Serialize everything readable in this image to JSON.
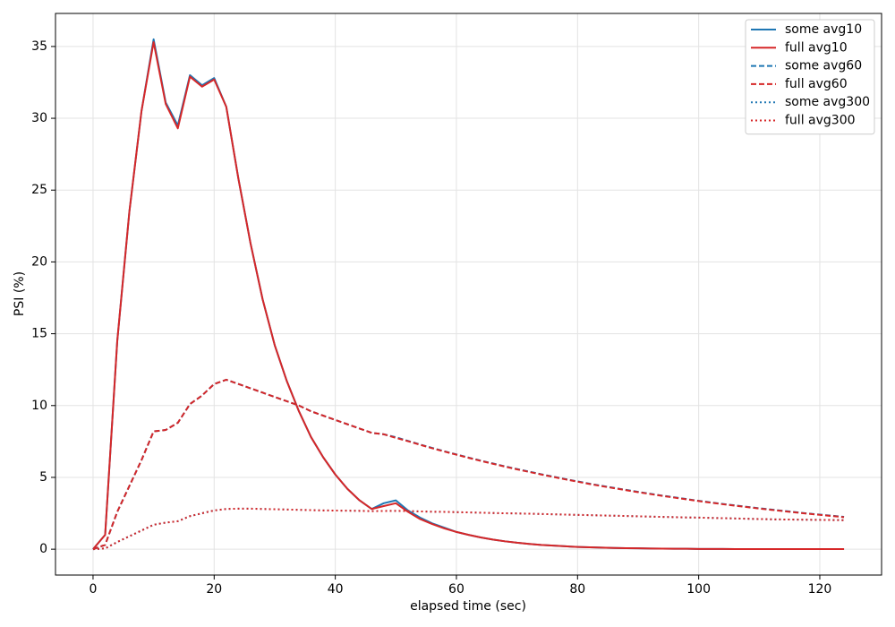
{
  "chart_data": {
    "type": "line",
    "x_label": "elapsed time (sec)",
    "y_label": "PSI (%)",
    "x": [
      0,
      2,
      4,
      6,
      8,
      10,
      12,
      14,
      16,
      18,
      20,
      22,
      24,
      26,
      28,
      30,
      32,
      34,
      36,
      38,
      40,
      42,
      44,
      46,
      48,
      50,
      52,
      54,
      56,
      58,
      60,
      62,
      64,
      66,
      68,
      70,
      72,
      74,
      76,
      78,
      80,
      82,
      84,
      86,
      88,
      90,
      92,
      94,
      96,
      98,
      100,
      102,
      104,
      106,
      108,
      110,
      112,
      114,
      116,
      118,
      120,
      122,
      124
    ],
    "series": [
      {
        "name": "some avg10",
        "color": "#1f77b4",
        "dash": "solid",
        "values": [
          0,
          1.0,
          14.5,
          23.5,
          30.5,
          35.5,
          31.1,
          29.5,
          33.0,
          32.3,
          32.8,
          30.8,
          25.8,
          21.3,
          17.4,
          14.2,
          11.7,
          9.6,
          7.8,
          6.4,
          5.2,
          4.2,
          3.4,
          2.8,
          3.2,
          3.4,
          2.7,
          2.2,
          1.8,
          1.5,
          1.2,
          1.0,
          0.82,
          0.67,
          0.55,
          0.45,
          0.37,
          0.3,
          0.25,
          0.2,
          0.16,
          0.13,
          0.11,
          0.09,
          0.07,
          0.06,
          0.05,
          0.04,
          0.03,
          0.03,
          0.02,
          0.02,
          0.02,
          0.01,
          0.01,
          0.01,
          0.01,
          0.01,
          0.01,
          0.01,
          0.01,
          0.01,
          0.01
        ]
      },
      {
        "name": "full avg10",
        "color": "#d62728",
        "dash": "solid",
        "values": [
          0,
          1.0,
          14.5,
          23.5,
          30.5,
          35.3,
          31.0,
          29.3,
          32.9,
          32.2,
          32.7,
          30.8,
          25.8,
          21.3,
          17.4,
          14.2,
          11.7,
          9.6,
          7.8,
          6.4,
          5.2,
          4.2,
          3.4,
          2.8,
          3.0,
          3.2,
          2.6,
          2.1,
          1.75,
          1.45,
          1.2,
          1.0,
          0.82,
          0.67,
          0.55,
          0.45,
          0.37,
          0.3,
          0.25,
          0.2,
          0.16,
          0.13,
          0.11,
          0.09,
          0.07,
          0.06,
          0.05,
          0.04,
          0.03,
          0.03,
          0.02,
          0.02,
          0.02,
          0.01,
          0.01,
          0.01,
          0.01,
          0.01,
          0.01,
          0.01,
          0.01,
          0.01,
          0.01
        ]
      },
      {
        "name": "some avg60",
        "color": "#1f77b4",
        "dash": "dashed",
        "values": [
          0,
          0.3,
          2.6,
          4.4,
          6.2,
          8.2,
          8.3,
          8.8,
          10.1,
          10.7,
          11.5,
          11.8,
          11.5,
          11.2,
          10.9,
          10.6,
          10.3,
          10.0,
          9.6,
          9.3,
          9.0,
          8.7,
          8.4,
          8.1,
          8.0,
          7.8,
          7.54,
          7.29,
          7.05,
          6.82,
          6.6,
          6.38,
          6.17,
          5.97,
          5.77,
          5.58,
          5.4,
          5.22,
          5.05,
          4.88,
          4.72,
          4.56,
          4.41,
          4.27,
          4.13,
          3.99,
          3.86,
          3.73,
          3.61,
          3.49,
          3.37,
          3.26,
          3.15,
          3.05,
          2.95,
          2.85,
          2.76,
          2.67,
          2.58,
          2.49,
          2.41,
          2.33,
          2.25
        ]
      },
      {
        "name": "full avg60",
        "color": "#d62728",
        "dash": "dashed",
        "values": [
          0,
          0.3,
          2.6,
          4.4,
          6.2,
          8.2,
          8.3,
          8.8,
          10.1,
          10.7,
          11.5,
          11.8,
          11.5,
          11.2,
          10.9,
          10.6,
          10.3,
          10.0,
          9.6,
          9.3,
          9.0,
          8.7,
          8.4,
          8.1,
          8.0,
          7.75,
          7.52,
          7.27,
          7.03,
          6.8,
          6.58,
          6.36,
          6.15,
          5.95,
          5.75,
          5.56,
          5.38,
          5.2,
          5.03,
          4.86,
          4.7,
          4.54,
          4.39,
          4.25,
          4.11,
          3.97,
          3.84,
          3.71,
          3.59,
          3.47,
          3.35,
          3.24,
          3.13,
          3.03,
          2.93,
          2.83,
          2.74,
          2.65,
          2.56,
          2.47,
          2.39,
          2.31,
          2.23
        ]
      },
      {
        "name": "some avg300",
        "color": "#1f77b4",
        "dash": "dotted",
        "values": [
          0,
          0.05,
          0.5,
          0.9,
          1.3,
          1.7,
          1.85,
          1.95,
          2.3,
          2.5,
          2.7,
          2.8,
          2.82,
          2.82,
          2.8,
          2.78,
          2.76,
          2.74,
          2.72,
          2.7,
          2.69,
          2.68,
          2.67,
          2.65,
          2.66,
          2.67,
          2.65,
          2.63,
          2.61,
          2.6,
          2.58,
          2.56,
          2.54,
          2.52,
          2.5,
          2.49,
          2.47,
          2.45,
          2.43,
          2.41,
          2.39,
          2.37,
          2.35,
          2.33,
          2.31,
          2.29,
          2.27,
          2.25,
          2.23,
          2.21,
          2.2,
          2.18,
          2.16,
          2.14,
          2.12,
          2.1,
          2.08,
          2.07,
          2.06,
          2.05,
          2.04,
          2.03,
          2.02
        ]
      },
      {
        "name": "full avg300",
        "color": "#d62728",
        "dash": "dotted",
        "values": [
          0,
          0.05,
          0.5,
          0.9,
          1.3,
          1.7,
          1.85,
          1.95,
          2.3,
          2.5,
          2.7,
          2.8,
          2.82,
          2.82,
          2.8,
          2.78,
          2.76,
          2.74,
          2.72,
          2.7,
          2.69,
          2.68,
          2.67,
          2.65,
          2.66,
          2.67,
          2.65,
          2.63,
          2.61,
          2.6,
          2.58,
          2.56,
          2.54,
          2.52,
          2.5,
          2.49,
          2.47,
          2.45,
          2.43,
          2.41,
          2.39,
          2.37,
          2.35,
          2.33,
          2.31,
          2.29,
          2.27,
          2.25,
          2.23,
          2.21,
          2.2,
          2.18,
          2.16,
          2.14,
          2.12,
          2.1,
          2.08,
          2.07,
          2.06,
          2.05,
          2.04,
          2.03,
          2.02
        ]
      }
    ],
    "xlim": [
      -6.2,
      130.2
    ],
    "ylim": [
      -1.8,
      37.3
    ],
    "xticks": [
      0,
      20,
      40,
      60,
      80,
      100,
      120
    ],
    "yticks": [
      0,
      5,
      10,
      15,
      20,
      25,
      30,
      35
    ],
    "grid": true,
    "legend": "upper-right"
  }
}
